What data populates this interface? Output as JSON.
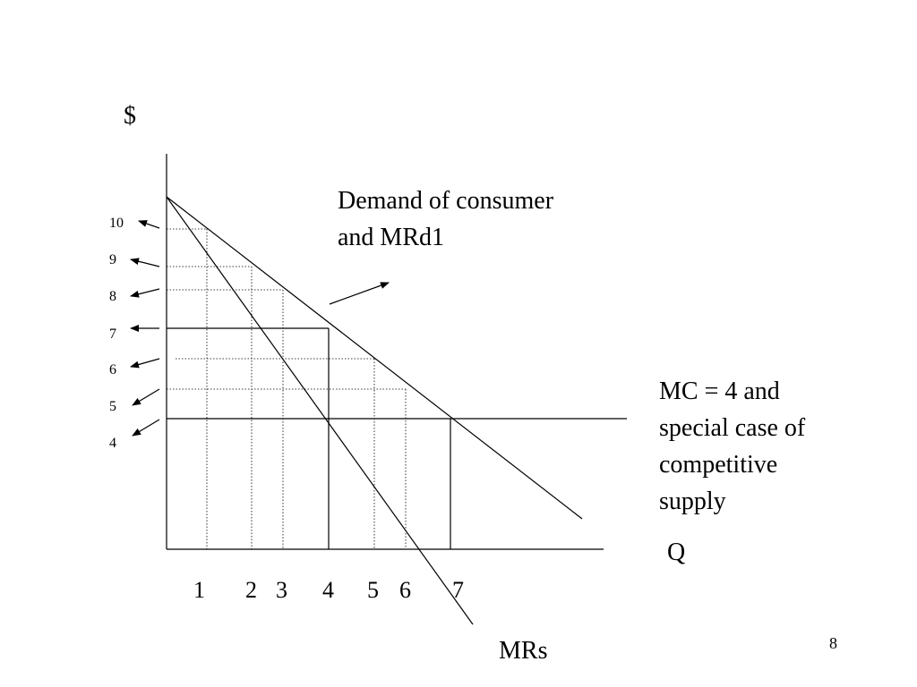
{
  "labels": {
    "y_axis_symbol": "$",
    "demand_note": [
      "Demand of consumer",
      "and MRd1"
    ],
    "mc_note": [
      "MC = 4 and",
      "special case of",
      "competitive",
      "supply"
    ],
    "x_axis_label": "Q",
    "mr_label": "MRs",
    "page_number": "8"
  },
  "y_ticks": [
    "10",
    "9",
    "8",
    "7",
    "6",
    "5",
    "4"
  ],
  "x_ticks": [
    "1",
    "2",
    "3",
    "4",
    "5",
    "6",
    "7"
  ],
  "colors": {
    "lines": "#000000",
    "background": "#ffffff"
  }
}
